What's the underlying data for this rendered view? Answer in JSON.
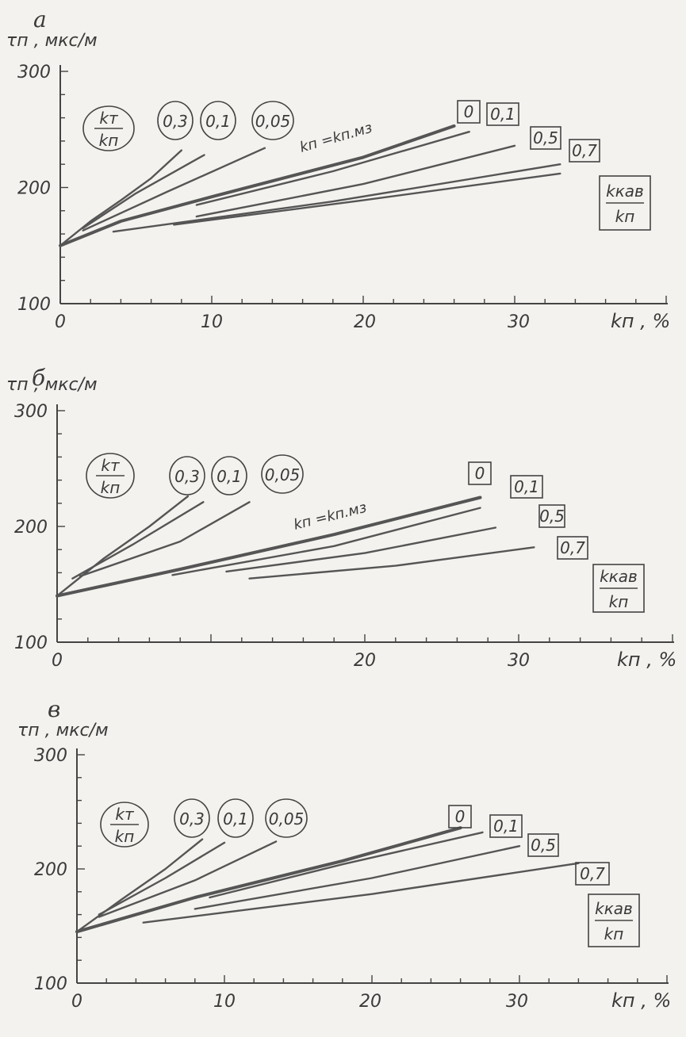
{
  "chart_data": [
    {
      "panel": "а",
      "type": "line",
      "ylabel": "τп , мкс/м",
      "xlabel": "kп , %",
      "xlim": [
        0,
        40
      ],
      "ylim": [
        100,
        300
      ],
      "x_ticks": [
        "0",
        "10",
        "20",
        "30"
      ],
      "y_ticks": [
        "100",
        "200",
        "300"
      ],
      "kt_legend": {
        "num": "kт",
        "den": "kп"
      },
      "kkav_legend": {
        "num": "kкав",
        "den": "kп"
      },
      "kt_values": [
        "0,3",
        "0,1",
        "0,05"
      ],
      "kkav_values": [
        "0",
        "0,1",
        "0,5",
        "0,7"
      ],
      "main_curve_label": "kп =kп.мз",
      "series": [
        {
          "name": "0,3",
          "points": [
            [
              0,
              150
            ],
            [
              2,
              171
            ],
            [
              4,
              189
            ],
            [
              6,
              208
            ],
            [
              8,
              232
            ]
          ]
        },
        {
          "name": "0,1",
          "points": [
            [
              1.5,
              165
            ],
            [
              5,
              195
            ],
            [
              9.5,
              228
            ]
          ]
        },
        {
          "name": "0,05",
          "points": [
            [
              1.5,
              163
            ],
            [
              7,
              196
            ],
            [
              13.5,
              234
            ]
          ]
        },
        {
          "name": "0",
          "points": [
            [
              0,
              150
            ],
            [
              4,
              171
            ],
            [
              10,
              192
            ],
            [
              20,
              226
            ],
            [
              26,
              253
            ]
          ]
        },
        {
          "name": "0,1",
          "points": [
            [
              9,
              185
            ],
            [
              18,
              214
            ],
            [
              27,
              248
            ]
          ]
        },
        {
          "name": "0,5",
          "points": [
            [
              9,
              175
            ],
            [
              20,
              203
            ],
            [
              30,
              236
            ]
          ]
        },
        {
          "name": "0,7",
          "points": [
            [
              3.5,
              162
            ],
            [
              18,
              188
            ],
            [
              33,
              220
            ]
          ]
        },
        {
          "name": "",
          "points": [
            [
              7.5,
              168
            ],
            [
              20,
              189
            ],
            [
              33,
              212
            ]
          ]
        }
      ]
    },
    {
      "panel": "б",
      "type": "line",
      "ylabel": "τп , мкс/м",
      "xlabel": "kп , %",
      "xlim": [
        0,
        40
      ],
      "ylim": [
        100,
        300
      ],
      "x_ticks": [
        "0",
        "20",
        "30"
      ],
      "y_ticks": [
        "100",
        "200",
        "300"
      ],
      "kt_legend": {
        "num": "kт",
        "den": "kп"
      },
      "kkav_legend": {
        "num": "kкав",
        "den": "kп"
      },
      "kt_values": [
        "0,3",
        "0,1",
        "0,05"
      ],
      "kkav_values": [
        "0",
        "0,1",
        "0,5",
        "0,7"
      ],
      "main_curve_label": "kп =kп.мз",
      "series": [
        {
          "name": "0,3",
          "points": [
            [
              0,
              140
            ],
            [
              3,
              172
            ],
            [
              6,
              200
            ],
            [
              8.5,
              226
            ]
          ]
        },
        {
          "name": "0,1",
          "points": [
            [
              1,
              155
            ],
            [
              5,
              185
            ],
            [
              9.5,
              221
            ]
          ]
        },
        {
          "name": "0,05",
          "points": [
            [
              1.5,
              157
            ],
            [
              8,
              187
            ],
            [
              12.5,
              221
            ]
          ]
        },
        {
          "name": "0",
          "points": [
            [
              0,
              140
            ],
            [
              8,
              163
            ],
            [
              18,
              193
            ],
            [
              27.5,
              225
            ]
          ]
        },
        {
          "name": "0,1",
          "points": [
            [
              7.5,
              158
            ],
            [
              18,
              183
            ],
            [
              27.5,
              216
            ]
          ]
        },
        {
          "name": "0,5",
          "points": [
            [
              11,
              161
            ],
            [
              20,
              177
            ],
            [
              28.5,
              199
            ]
          ]
        },
        {
          "name": "0,7",
          "points": [
            [
              12.5,
              155
            ],
            [
              22,
              166
            ],
            [
              31,
              182
            ]
          ]
        }
      ]
    },
    {
      "panel": "в",
      "type": "line",
      "ylabel": "τп , мкс/м",
      "xlabel": "kп , %",
      "xlim": [
        0,
        40
      ],
      "ylim": [
        100,
        300
      ],
      "x_ticks": [
        "0",
        "10",
        "20",
        "30"
      ],
      "y_ticks": [
        "100",
        "200",
        "300"
      ],
      "kt_legend": {
        "num": "kт",
        "den": "kп"
      },
      "kkav_legend": {
        "num": "kкав",
        "den": "kп"
      },
      "kt_values": [
        "0,3",
        "0,1",
        "0,05"
      ],
      "kkav_values": [
        "0",
        "0,1",
        "0,5",
        "0,7"
      ],
      "series": [
        {
          "name": "0,3",
          "points": [
            [
              0,
              145
            ],
            [
              3,
              173
            ],
            [
              6,
              200
            ],
            [
              8.5,
              226
            ]
          ]
        },
        {
          "name": "0,1",
          "points": [
            [
              1.5,
              160
            ],
            [
              6,
              192
            ],
            [
              10,
              223
            ]
          ]
        },
        {
          "name": "0,05",
          "points": [
            [
              1.5,
              158
            ],
            [
              8,
              190
            ],
            [
              13.5,
              224
            ]
          ]
        },
        {
          "name": "0",
          "points": [
            [
              0,
              145
            ],
            [
              8,
              175
            ],
            [
              18,
              207
            ],
            [
              26,
              236
            ]
          ]
        },
        {
          "name": "0,1",
          "points": [
            [
              9,
              175
            ],
            [
              18,
              204
            ],
            [
              27.5,
              232
            ]
          ]
        },
        {
          "name": "0,5",
          "points": [
            [
              8,
              165
            ],
            [
              20,
              192
            ],
            [
              30,
              220
            ]
          ]
        },
        {
          "name": "0,7",
          "points": [
            [
              4.5,
              153
            ],
            [
              20,
              178
            ],
            [
              34,
              205
            ]
          ]
        }
      ]
    }
  ],
  "panel_geom": [
    {
      "x0": 76,
      "x10": 267,
      "y300": 90,
      "y100": 383,
      "tick_x": [
        76,
        267,
        460,
        654
      ],
      "letter": [
        42,
        10
      ],
      "ylab": [
        8,
        58
      ]
    },
    {
      "x0": 72,
      "x10": 266,
      "y300": 518,
      "y100": 810,
      "tick_x": [
        72,
        460,
        654
      ],
      "letter": [
        40,
        462
      ],
      "ylab": [
        8,
        492
      ]
    },
    {
      "x0": 97,
      "x10": 283,
      "y300": 952,
      "y100": 1240,
      "tick_x": [
        97,
        283,
        467,
        652
      ],
      "letter": [
        60,
        880
      ],
      "ylab": [
        22,
        928
      ]
    }
  ]
}
